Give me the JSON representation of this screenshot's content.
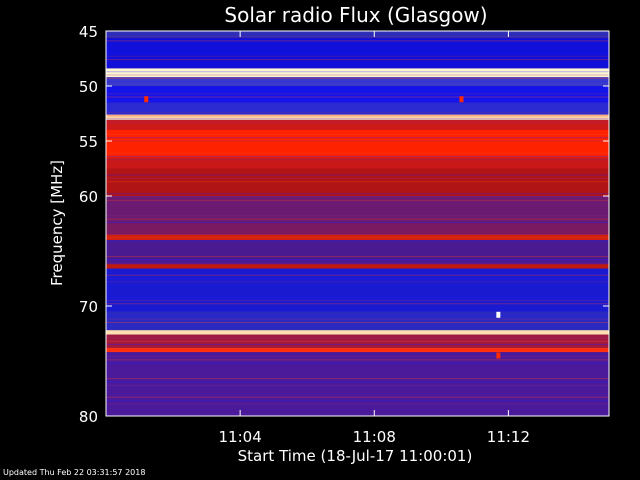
{
  "chart_data": {
    "type": "heatmap",
    "title": "Solar radio Flux (Glasgow)",
    "ylabel": "Frequency [MHz]",
    "xlabel": "Start Time (18-Jul-17 11:00:01)",
    "x_start_min": 0,
    "x_end_min": 15.0,
    "ylim": [
      80,
      45
    ],
    "x_ticks": [
      {
        "value": 4,
        "label": "11:04"
      },
      {
        "value": 8,
        "label": "11:08"
      },
      {
        "value": 12,
        "label": "11:12"
      }
    ],
    "y_ticks": [
      {
        "value": 45,
        "label": "45"
      },
      {
        "value": 50,
        "label": "50"
      },
      {
        "value": 55,
        "label": "55"
      },
      {
        "value": 60,
        "label": "60"
      },
      {
        "value": 70,
        "label": "70"
      },
      {
        "value": 80,
        "label": "80"
      }
    ],
    "colors": {
      "background": "#3a1a8a",
      "low": "#1515e0",
      "mid": "#cc1a1a",
      "high": "#ff2a00",
      "peak": "#fff6d0"
    },
    "bands": [
      {
        "f0": 45.0,
        "f1": 45.6,
        "color": "#3030b0"
      },
      {
        "f0": 45.6,
        "f1": 48.4,
        "color": "#1010d8"
      },
      {
        "f0": 48.4,
        "f1": 49.2,
        "color": "#fff6d0"
      },
      {
        "f0": 49.2,
        "f1": 50.0,
        "color": "#3a3ac8"
      },
      {
        "f0": 50.0,
        "f1": 51.5,
        "color": "#1414e8"
      },
      {
        "f0": 51.5,
        "f1": 52.6,
        "color": "#2a2ad0"
      },
      {
        "f0": 52.6,
        "f1": 53.1,
        "color": "#ffd0a0"
      },
      {
        "f0": 53.1,
        "f1": 54.0,
        "color": "#cc1a1a"
      },
      {
        "f0": 54.0,
        "f1": 56.5,
        "color": "#ff2200"
      },
      {
        "f0": 56.5,
        "f1": 57.5,
        "color": "#c81818"
      },
      {
        "f0": 57.5,
        "f1": 60.0,
        "color": "#b01414"
      },
      {
        "f0": 60.0,
        "f1": 62.5,
        "color": "#6a1a70"
      },
      {
        "f0": 62.5,
        "f1": 63.5,
        "color": "#7a1a60"
      },
      {
        "f0": 63.5,
        "f1": 64.0,
        "color": "#d02010"
      },
      {
        "f0": 64.0,
        "f1": 66.2,
        "color": "#4a1a90"
      },
      {
        "f0": 66.2,
        "f1": 66.6,
        "color": "#c01a10"
      },
      {
        "f0": 66.6,
        "f1": 70.5,
        "color": "#1a1ad0"
      },
      {
        "f0": 70.5,
        "f1": 72.2,
        "color": "#2a2ac0"
      },
      {
        "f0": 72.2,
        "f1": 72.6,
        "color": "#ffe0b0"
      },
      {
        "f0": 72.6,
        "f1": 73.8,
        "color": "#a01a40"
      },
      {
        "f0": 73.8,
        "f1": 74.2,
        "color": "#ff3010"
      },
      {
        "f0": 74.2,
        "f1": 80.0,
        "color": "#4a1a9a"
      }
    ],
    "spot_events": [
      {
        "t": 1.2,
        "f": 51.2,
        "color": "#ff2a00"
      },
      {
        "t": 10.6,
        "f": 51.2,
        "color": "#ff2a00"
      },
      {
        "t": 11.7,
        "f": 70.8,
        "color": "#ffffff"
      },
      {
        "t": 11.7,
        "f": 74.5,
        "color": "#ff2a00"
      }
    ]
  },
  "footer": {
    "updated": "Updated Thu Feb 22 03:31:57 2018"
  }
}
